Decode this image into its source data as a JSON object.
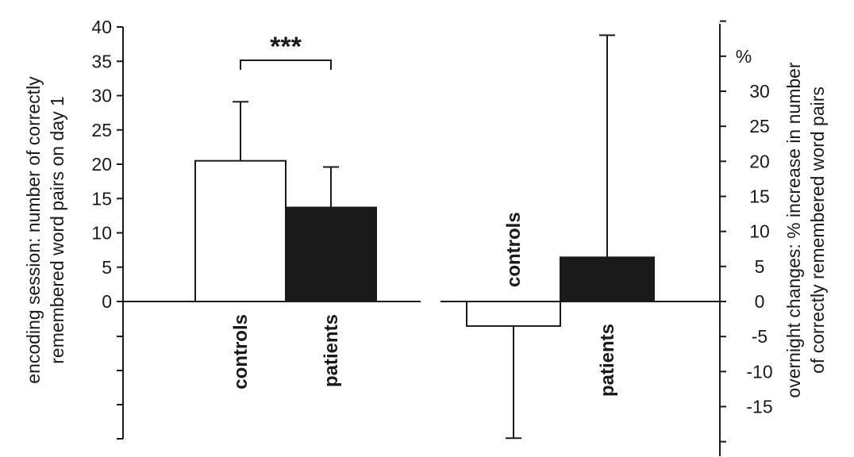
{
  "chart_data": [
    {
      "type": "bar",
      "categories": [
        "controls",
        "patients"
      ],
      "values": [
        20.5,
        13.7
      ],
      "error_upper": [
        29.1,
        19.6
      ],
      "ylabel_lines": [
        "encoding session: number of correctly",
        "remembered word pairs on day 1"
      ],
      "yticks": [
        "0",
        "5",
        "10",
        "15",
        "20",
        "25",
        "30",
        "35",
        "40"
      ],
      "ylim": [
        0,
        40
      ],
      "significance": "***",
      "colors": [
        "#ffffff",
        "#1a1a1a"
      ]
    },
    {
      "type": "bar",
      "categories": [
        "controls",
        "patients"
      ],
      "values": [
        -3.5,
        6.3
      ],
      "error_bound": [
        -19.5,
        38
      ],
      "ylabel_lines": [
        "overnight changes: % increase in number",
        "of correctly remembered word pairs"
      ],
      "unit": "%",
      "yticks": [
        "-15",
        "-10",
        "-5",
        "0",
        "5",
        "10",
        "15",
        "20",
        "25",
        "30"
      ],
      "ylim": [
        -20,
        40
      ],
      "colors": [
        "#ffffff",
        "#1a1a1a"
      ]
    }
  ]
}
